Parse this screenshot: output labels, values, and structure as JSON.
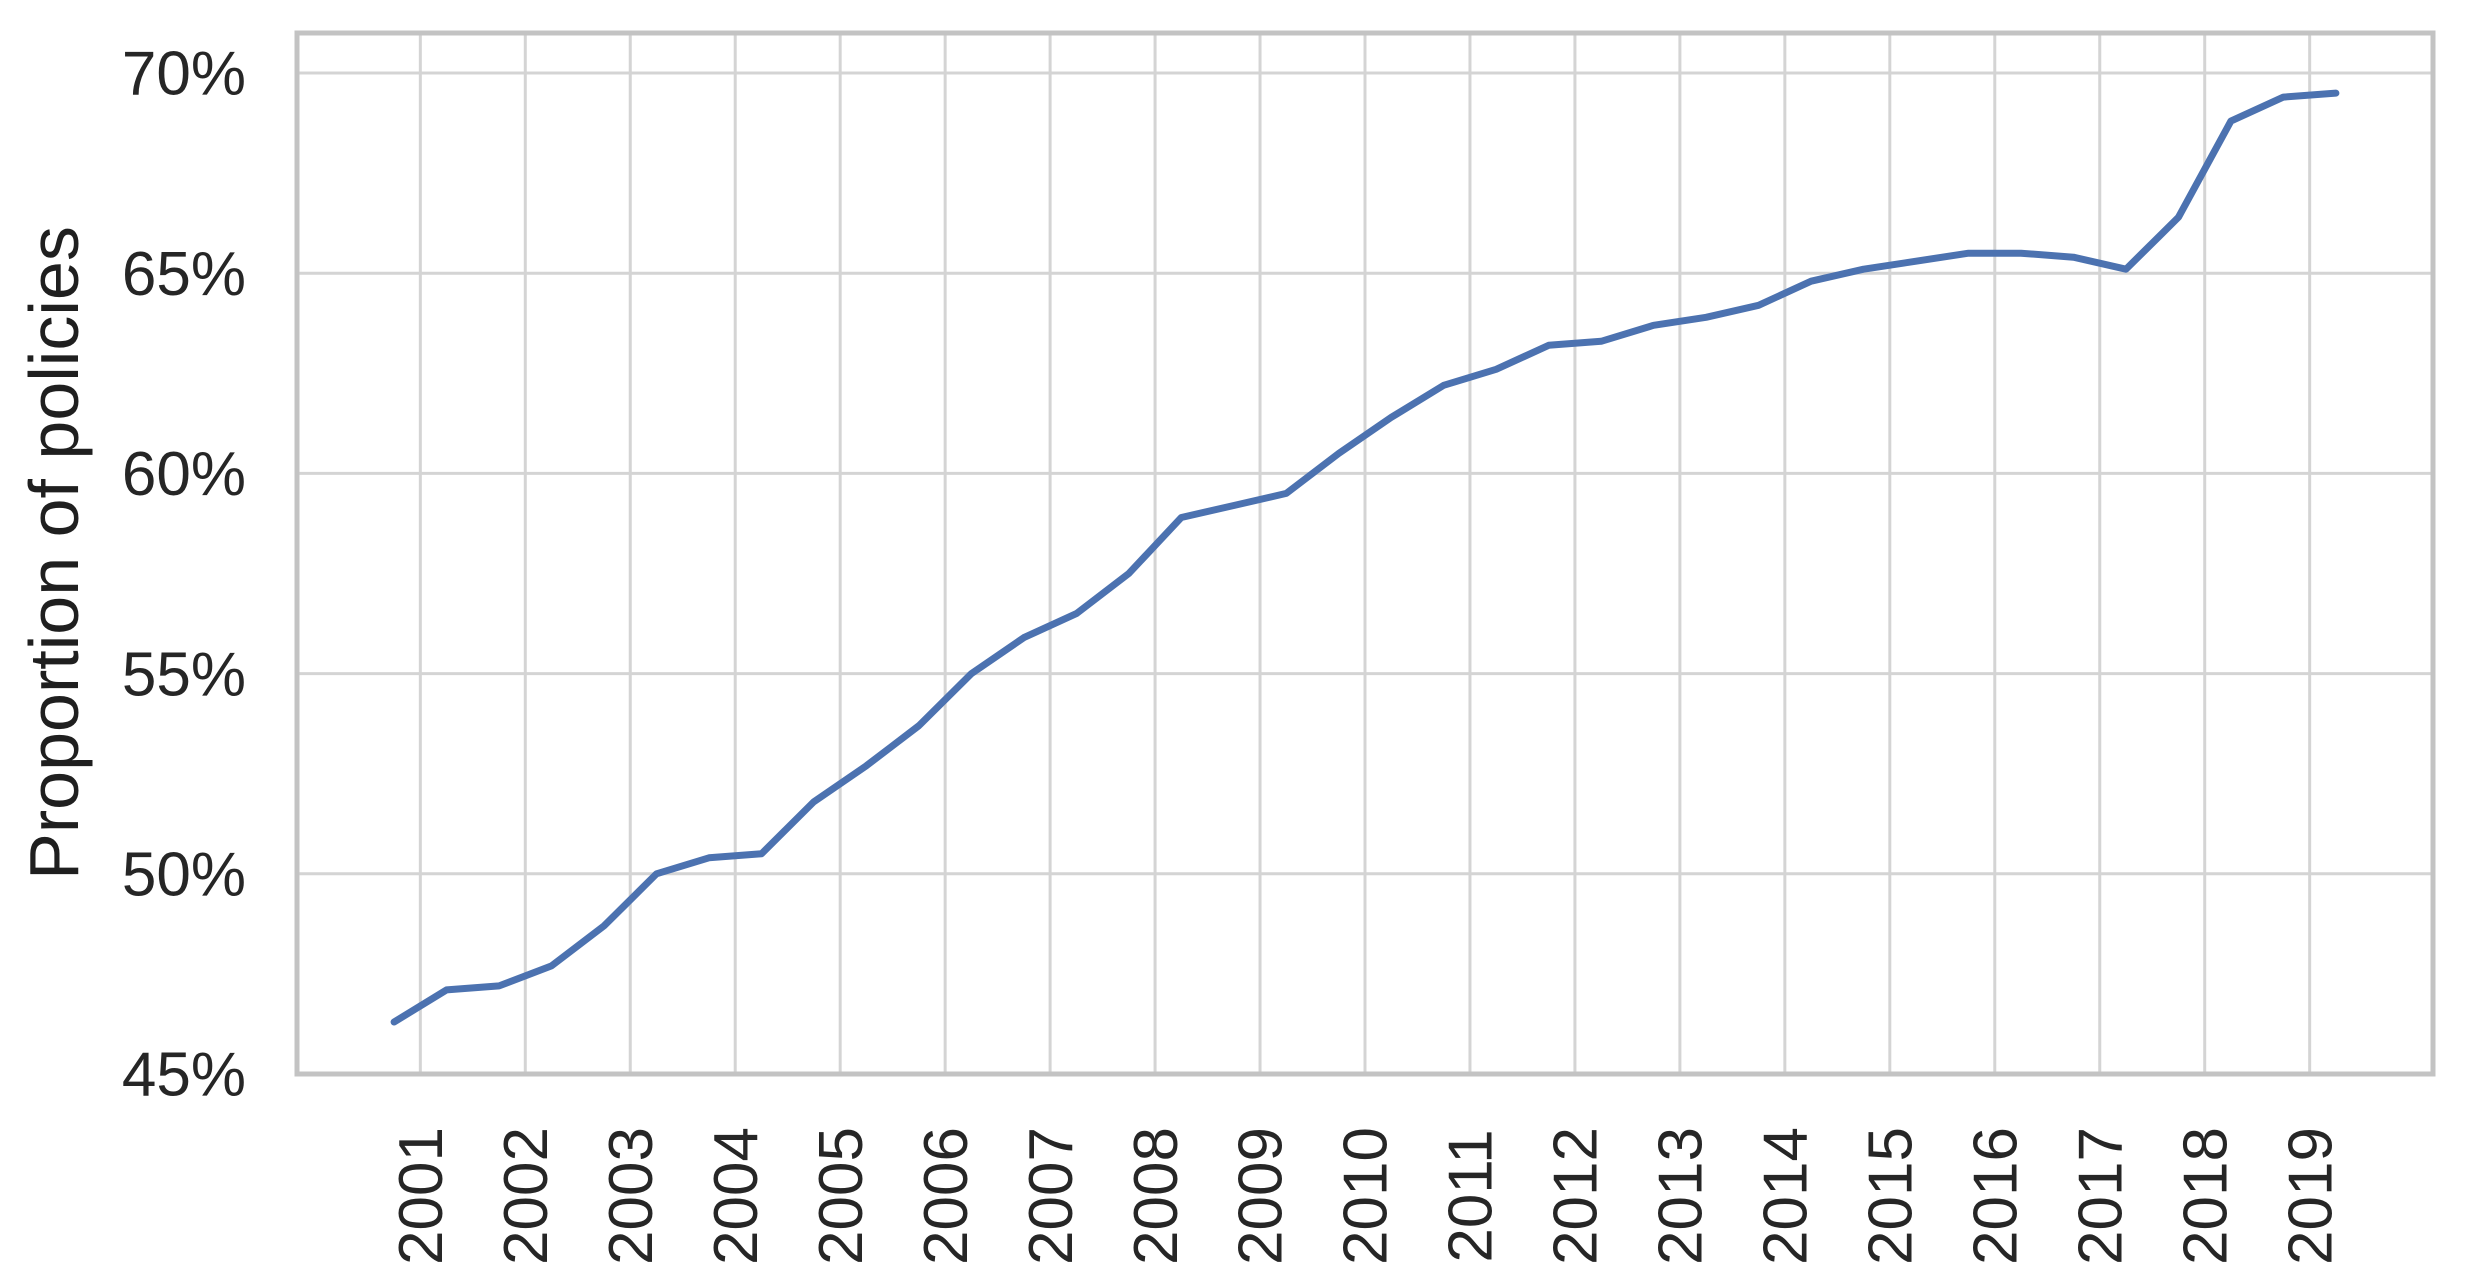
{
  "chart_data": {
    "type": "line",
    "title": "",
    "xlabel": "",
    "ylabel": "Proportion of policies",
    "grid": true,
    "legend_position": "none",
    "background_color": "#ffffff",
    "gridline_color": "#d4d4d4",
    "spine_color": "#c3c3c3",
    "text_color": "#262626",
    "xlim": [
      1999.825,
      2020.175
    ],
    "ylim": [
      45,
      71
    ],
    "x_ticks": [
      2001,
      2002,
      2003,
      2004,
      2005,
      2006,
      2007,
      2008,
      2009,
      2010,
      2011,
      2012,
      2013,
      2014,
      2015,
      2016,
      2017,
      2018,
      2019
    ],
    "x_tick_labels": [
      "2001",
      "2002",
      "2003",
      "2004",
      "2005",
      "2006",
      "2007",
      "2008",
      "2009",
      "2010",
      "2011",
      "2012",
      "2013",
      "2014",
      "2015",
      "2016",
      "2017",
      "2018",
      "2019"
    ],
    "x_tick_rotation_deg": 90,
    "y_ticks": [
      45,
      50,
      55,
      60,
      65,
      70
    ],
    "y_tick_labels": [
      "45%",
      "50%",
      "55%",
      "60%",
      "65%",
      "70%"
    ],
    "series": [
      {
        "name": "Proportion of policies",
        "color": "#4C72B0",
        "line_width": 7,
        "x": [
          2000.75,
          2001.25,
          2001.75,
          2002.25,
          2002.75,
          2003.25,
          2003.75,
          2004.25,
          2004.75,
          2005.25,
          2005.75,
          2006.25,
          2006.75,
          2007.25,
          2007.75,
          2008.25,
          2008.75,
          2009.25,
          2009.75,
          2010.25,
          2010.75,
          2011.25,
          2011.75,
          2012.25,
          2012.75,
          2013.25,
          2013.75,
          2014.25,
          2014.75,
          2015.25,
          2015.75,
          2016.25,
          2016.75,
          2017.25,
          2017.75,
          2018.25,
          2018.75,
          2019.25
        ],
        "y_pct": [
          46.3,
          47.1,
          47.2,
          47.7,
          48.7,
          50.0,
          50.4,
          50.5,
          51.8,
          52.7,
          53.7,
          55.0,
          55.9,
          56.5,
          57.5,
          58.9,
          59.2,
          59.5,
          60.5,
          61.4,
          62.2,
          62.6,
          63.2,
          63.3,
          63.7,
          63.9,
          64.2,
          64.8,
          65.1,
          65.3,
          65.5,
          65.5,
          65.4,
          65.1,
          66.4,
          68.8,
          69.4,
          69.5
        ]
      }
    ]
  }
}
